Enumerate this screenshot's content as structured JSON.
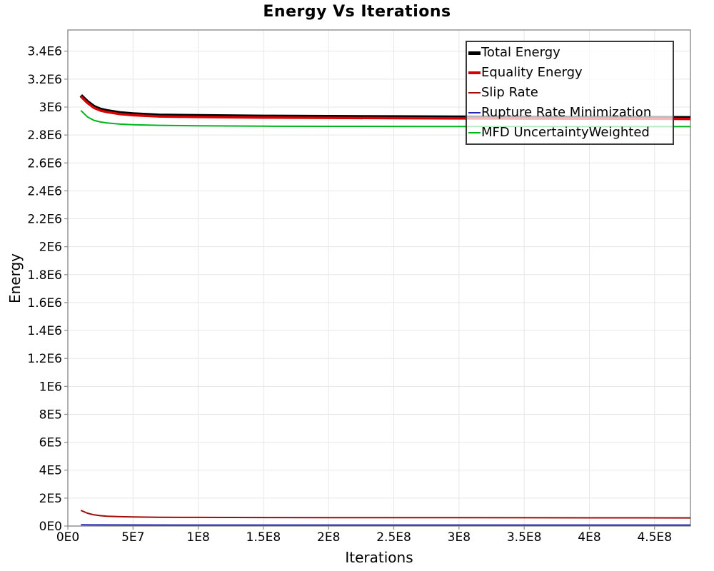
{
  "page": {
    "background": "#ffffff"
  },
  "chart_data": {
    "type": "line",
    "title": "Energy Vs Iterations",
    "xlabel": "Iterations",
    "ylabel": "Energy",
    "xlim": [
      0,
      477500000
    ],
    "ylim": [
      0,
      3552000
    ],
    "grid": true,
    "legend_position": "top-right",
    "legend_border_color": "#3a3a3a",
    "grid_color": "#e7e7e7",
    "border_color": "#8c8c8c",
    "tick_color": "#8c8c8c",
    "x_ticks": [
      {
        "value": 0,
        "label": "0E0"
      },
      {
        "value": 50000000,
        "label": "5E7"
      },
      {
        "value": 100000000,
        "label": "1E8"
      },
      {
        "value": 150000000,
        "label": "1.5E8"
      },
      {
        "value": 200000000,
        "label": "2E8"
      },
      {
        "value": 250000000,
        "label": "2.5E8"
      },
      {
        "value": 300000000,
        "label": "3E8"
      },
      {
        "value": 350000000,
        "label": "3.5E8"
      },
      {
        "value": 400000000,
        "label": "4E8"
      },
      {
        "value": 450000000,
        "label": "4.5E8"
      }
    ],
    "y_ticks": [
      {
        "value": 0,
        "label": "0E0"
      },
      {
        "value": 200000,
        "label": "2E5"
      },
      {
        "value": 400000,
        "label": "4E5"
      },
      {
        "value": 600000,
        "label": "6E5"
      },
      {
        "value": 800000,
        "label": "8E5"
      },
      {
        "value": 1000000,
        "label": "1E6"
      },
      {
        "value": 1200000,
        "label": "1.2E6"
      },
      {
        "value": 1400000,
        "label": "1.4E6"
      },
      {
        "value": 1600000,
        "label": "1.6E6"
      },
      {
        "value": 1800000,
        "label": "1.8E6"
      },
      {
        "value": 2000000,
        "label": "2E6"
      },
      {
        "value": 2200000,
        "label": "2.2E6"
      },
      {
        "value": 2400000,
        "label": "2.4E6"
      },
      {
        "value": 2600000,
        "label": "2.6E6"
      },
      {
        "value": 2800000,
        "label": "2.8E6"
      },
      {
        "value": 3000000,
        "label": "3E6"
      },
      {
        "value": 3200000,
        "label": "3.2E6"
      },
      {
        "value": 3400000,
        "label": "3.4E6"
      }
    ],
    "series": [
      {
        "name": "Total Energy",
        "color": "#000000",
        "line_width": 5,
        "points": [
          [
            10000000,
            3083000
          ],
          [
            15000000,
            3038000
          ],
          [
            20000000,
            3003000
          ],
          [
            25000000,
            2983000
          ],
          [
            30000000,
            2973000
          ],
          [
            40000000,
            2958000
          ],
          [
            50000000,
            2950000
          ],
          [
            70000000,
            2941000
          ],
          [
            100000000,
            2937000
          ],
          [
            150000000,
            2933000
          ],
          [
            200000000,
            2931000
          ],
          [
            250000000,
            2929000
          ],
          [
            300000000,
            2927000
          ],
          [
            350000000,
            2926000
          ],
          [
            400000000,
            2925000
          ],
          [
            450000000,
            2924000
          ],
          [
            477500000,
            2923000
          ]
        ]
      },
      {
        "name": "Equality Energy",
        "color": "#d80000",
        "line_width": 3.5,
        "points": [
          [
            10000000,
            3075000
          ],
          [
            15000000,
            3030000
          ],
          [
            20000000,
            2995000
          ],
          [
            25000000,
            2975000
          ],
          [
            30000000,
            2965000
          ],
          [
            40000000,
            2950000
          ],
          [
            50000000,
            2942000
          ],
          [
            70000000,
            2933000
          ],
          [
            100000000,
            2929000
          ],
          [
            150000000,
            2925000
          ],
          [
            200000000,
            2923000
          ],
          [
            250000000,
            2921000
          ],
          [
            300000000,
            2919000
          ],
          [
            350000000,
            2918000
          ],
          [
            400000000,
            2917000
          ],
          [
            450000000,
            2916000
          ],
          [
            477500000,
            2915000
          ]
        ]
      },
      {
        "name": "Slip Rate",
        "color": "#a00a0a",
        "line_width": 2,
        "points": [
          [
            10000000,
            112000
          ],
          [
            15000000,
            92000
          ],
          [
            20000000,
            80000
          ],
          [
            25000000,
            74000
          ],
          [
            30000000,
            70000
          ],
          [
            40000000,
            67000
          ],
          [
            50000000,
            65000
          ],
          [
            70000000,
            63000
          ],
          [
            100000000,
            62000
          ],
          [
            150000000,
            61000
          ],
          [
            200000000,
            60500
          ],
          [
            300000000,
            60000
          ],
          [
            400000000,
            59000
          ],
          [
            477500000,
            58500
          ]
        ]
      },
      {
        "name": "Rupture Rate Minimization",
        "color": "#2828b0",
        "line_width": 2,
        "points": [
          [
            10000000,
            9000
          ],
          [
            20000000,
            8000
          ],
          [
            50000000,
            7500
          ],
          [
            100000000,
            7000
          ],
          [
            200000000,
            7000
          ],
          [
            300000000,
            7000
          ],
          [
            400000000,
            7000
          ],
          [
            477500000,
            7000
          ]
        ]
      },
      {
        "name": "MFD UncertaintyWeighted",
        "color": "#00b41e",
        "line_width": 2,
        "points": [
          [
            10000000,
            2975000
          ],
          [
            15000000,
            2930000
          ],
          [
            20000000,
            2905000
          ],
          [
            25000000,
            2893000
          ],
          [
            30000000,
            2886000
          ],
          [
            40000000,
            2878000
          ],
          [
            50000000,
            2874000
          ],
          [
            70000000,
            2869000
          ],
          [
            100000000,
            2866000
          ],
          [
            150000000,
            2863000
          ],
          [
            200000000,
            2862000
          ],
          [
            250000000,
            2861500
          ],
          [
            300000000,
            2861000
          ],
          [
            350000000,
            2860500
          ],
          [
            400000000,
            2860000
          ],
          [
            450000000,
            2860000
          ],
          [
            477500000,
            2860000
          ]
        ]
      }
    ]
  }
}
